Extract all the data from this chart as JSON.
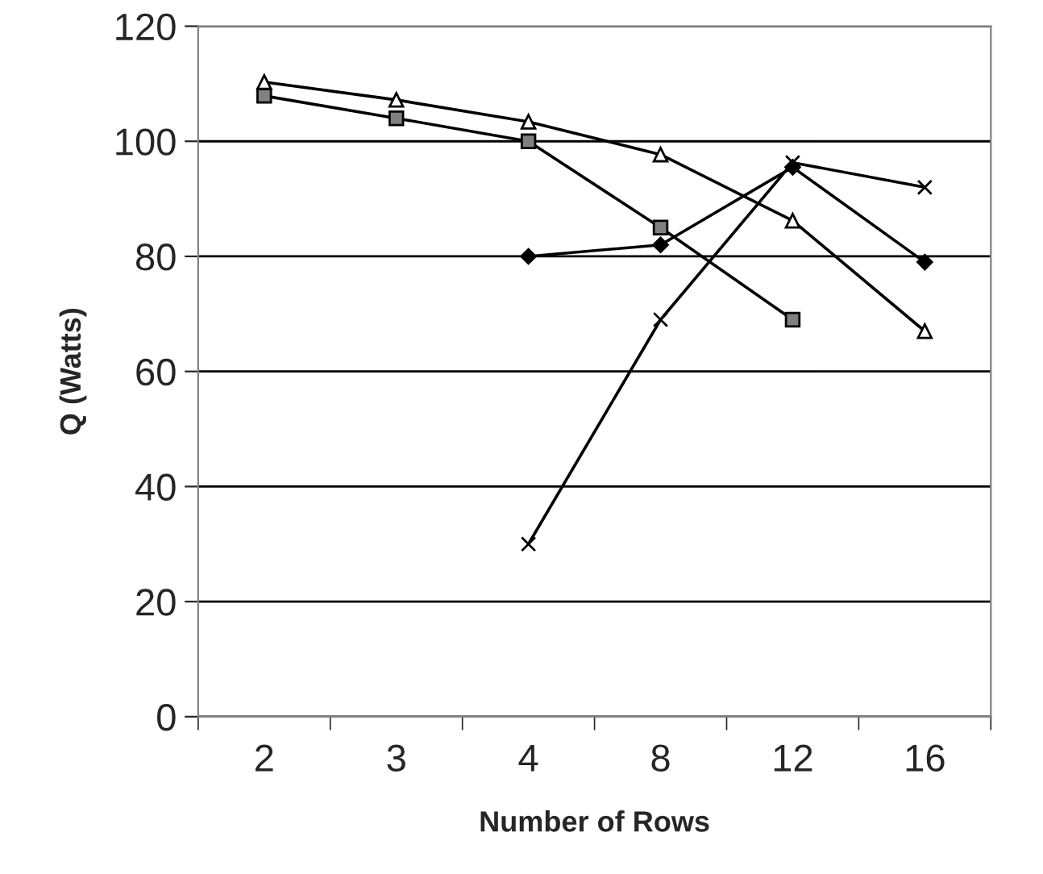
{
  "chart_data": {
    "type": "line",
    "xlabel": "Number of Rows",
    "ylabel": "Q (Watts)",
    "categories": [
      "2",
      "3",
      "4",
      "8",
      "12",
      "16"
    ],
    "series": [
      {
        "color": "#000000",
        "marker": "square",
        "values": [
          107.9,
          104,
          100,
          85,
          69,
          null
        ]
      },
      {
        "color": "#000000",
        "marker": "triangle",
        "values": [
          110.3,
          107.2,
          103.4,
          97.7,
          86.2,
          67
        ]
      },
      {
        "color": "#000000",
        "marker": "diamond",
        "values": [
          null,
          null,
          80,
          82,
          95.5,
          79
        ]
      },
      {
        "color": "#000000",
        "marker": "cross",
        "values": [
          null,
          null,
          30,
          69,
          96.3,
          92
        ]
      }
    ],
    "ylim": [
      0,
      120
    ],
    "yticks": [
      0,
      20,
      40,
      60,
      80,
      100,
      120
    ],
    "grid": "y",
    "legend": false,
    "line_style": "solid"
  }
}
